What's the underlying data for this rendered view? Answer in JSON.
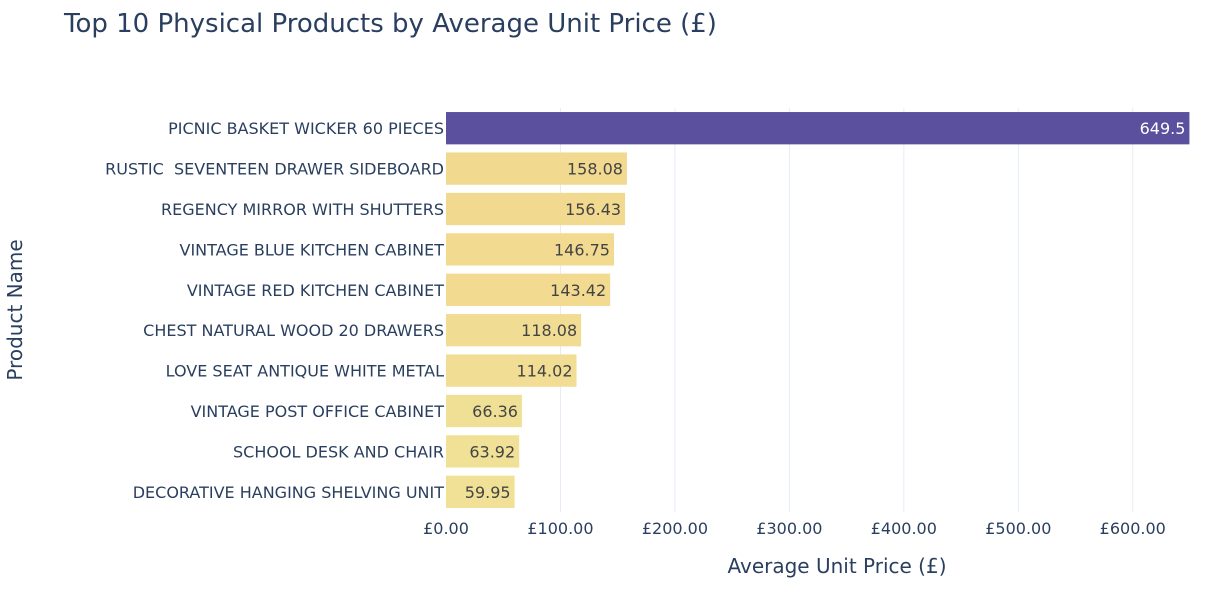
{
  "chart_data": {
    "type": "bar",
    "orientation": "horizontal",
    "title": "Top 10 Physical Products by Average Unit Price (£)",
    "xlabel": "Average Unit Price (£)",
    "ylabel": "Product Name",
    "xlim": [
      0,
      650
    ],
    "x_ticks": [
      0,
      100,
      200,
      300,
      400,
      500,
      600
    ],
    "x_tick_labels": [
      "£0.00",
      "£100.00",
      "£200.00",
      "£300.00",
      "£400.00",
      "£500.00",
      "£600.00"
    ],
    "grid": true,
    "legend": "none",
    "categories": [
      "PICNIC BASKET WICKER 60 PIECES",
      "RUSTIC  SEVENTEEN DRAWER SIDEBOARD",
      "REGENCY MIRROR WITH SHUTTERS",
      "VINTAGE BLUE KITCHEN CABINET",
      "VINTAGE RED KITCHEN CABINET",
      "CHEST NATURAL WOOD 20 DRAWERS",
      "LOVE SEAT ANTIQUE WHITE METAL",
      "VINTAGE POST OFFICE CABINET",
      "SCHOOL DESK AND CHAIR",
      "DECORATIVE HANGING SHELVING UNIT"
    ],
    "values": [
      649.5,
      158.08,
      156.43,
      146.75,
      143.42,
      118.08,
      114.02,
      66.36,
      63.92,
      59.95
    ],
    "data_labels": [
      "649.5",
      "158.08",
      "156.43",
      "146.75",
      "143.42",
      "118.08",
      "114.02",
      "66.36",
      "63.92",
      "59.95"
    ],
    "colorscale": [
      "#f0e196",
      "#f7ca85",
      "#5b509e"
    ],
    "colors": {
      "text": "#2a3f5f",
      "grid": "#e5ecf6",
      "label_light": "#ffffff",
      "label_dark": "#444444"
    }
  }
}
